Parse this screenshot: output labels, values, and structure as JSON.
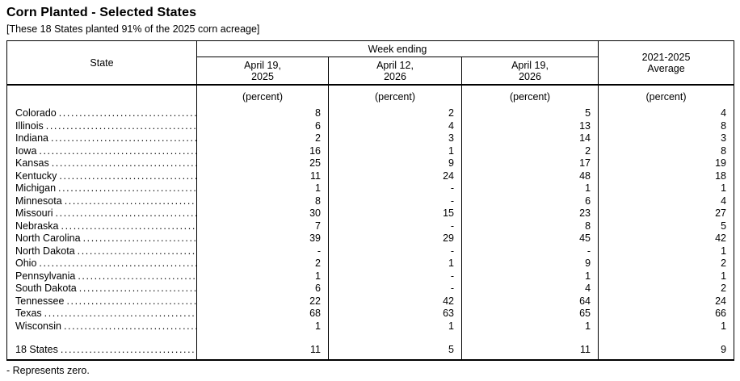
{
  "page": {
    "title": "Corn Planted - Selected States",
    "subtitle": "[These 18 States planted 91% of the 2025 corn acreage]",
    "footnote": "- Represents zero."
  },
  "table": {
    "state_header": "State",
    "group_header": "Week ending",
    "col_headers": [
      [
        "April 19,",
        "2025"
      ],
      [
        "April 12,",
        "2026"
      ],
      [
        "April 19,",
        "2026"
      ]
    ],
    "avg_header": [
      "2021-2025",
      "Average"
    ],
    "unit_label": "(percent)",
    "rows": [
      {
        "state": "Colorado",
        "values": [
          "8",
          "2",
          "5",
          "4"
        ]
      },
      {
        "state": "Illinois",
        "values": [
          "6",
          "4",
          "13",
          "8"
        ]
      },
      {
        "state": "Indiana",
        "values": [
          "2",
          "3",
          "14",
          "3"
        ]
      },
      {
        "state": "Iowa",
        "values": [
          "16",
          "1",
          "2",
          "8"
        ]
      },
      {
        "state": "Kansas",
        "values": [
          "25",
          "9",
          "17",
          "19"
        ]
      },
      {
        "state": "Kentucky",
        "values": [
          "11",
          "24",
          "48",
          "18"
        ]
      },
      {
        "state": "Michigan",
        "values": [
          "1",
          "-",
          "1",
          "1"
        ]
      },
      {
        "state": "Minnesota",
        "values": [
          "8",
          "-",
          "6",
          "4"
        ]
      },
      {
        "state": "Missouri",
        "values": [
          "30",
          "15",
          "23",
          "27"
        ]
      },
      {
        "state": "Nebraska",
        "values": [
          "7",
          "-",
          "8",
          "5"
        ]
      },
      {
        "state": "North Carolina",
        "values": [
          "39",
          "29",
          "45",
          "42"
        ]
      },
      {
        "state": "North Dakota",
        "values": [
          "-",
          "-",
          "-",
          "1"
        ]
      },
      {
        "state": "Ohio",
        "values": [
          "2",
          "1",
          "9",
          "2"
        ]
      },
      {
        "state": "Pennsylvania",
        "values": [
          "1",
          "-",
          "1",
          "1"
        ]
      },
      {
        "state": "South Dakota",
        "values": [
          "6",
          "-",
          "4",
          "2"
        ]
      },
      {
        "state": "Tennessee",
        "values": [
          "22",
          "42",
          "64",
          "24"
        ]
      },
      {
        "state": "Texas",
        "values": [
          "68",
          "63",
          "65",
          "66"
        ]
      },
      {
        "state": "Wisconsin",
        "values": [
          "1",
          "1",
          "1",
          "1"
        ]
      }
    ],
    "total_row": {
      "state": "18 States",
      "values": [
        "11",
        "5",
        "11",
        "9"
      ]
    }
  }
}
